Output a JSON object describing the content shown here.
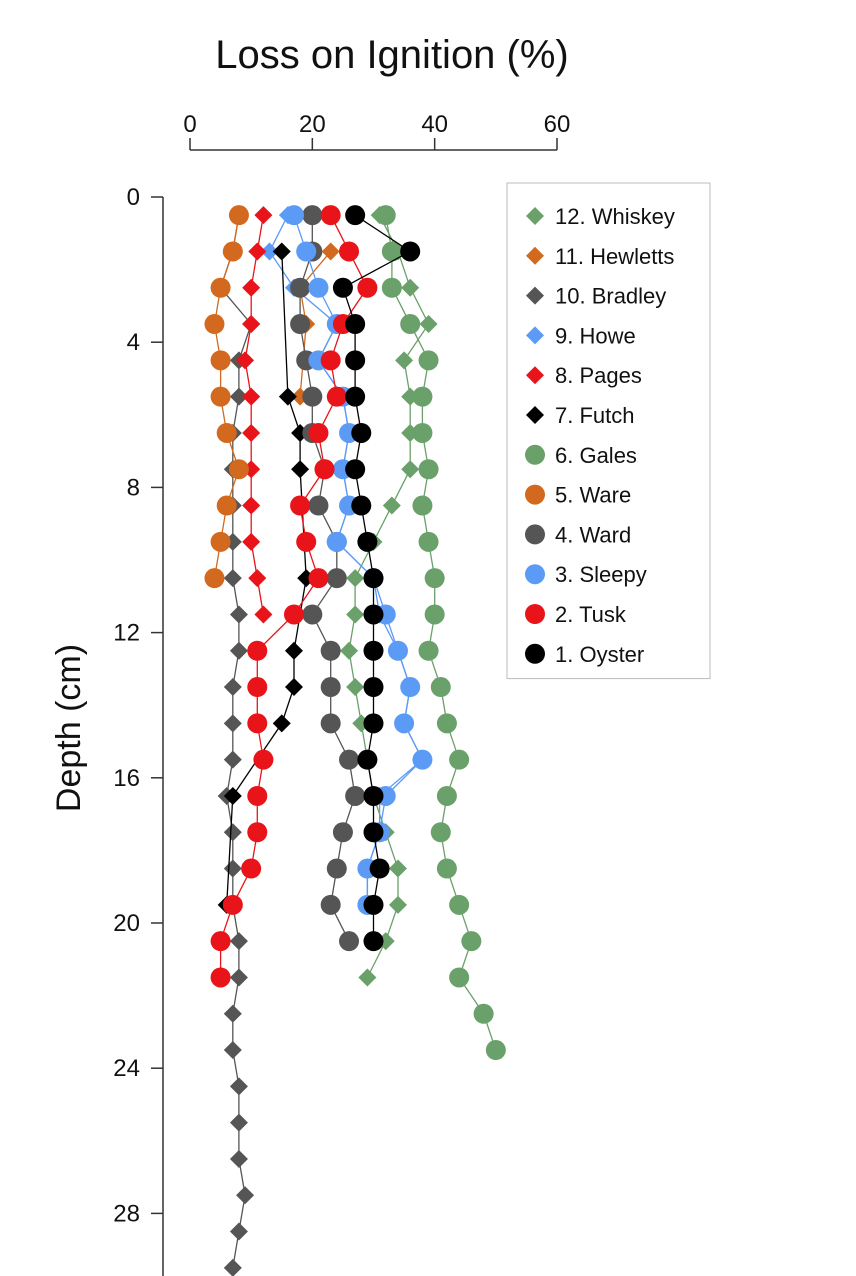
{
  "chart_data": {
    "type": "scatter",
    "title": "Loss on Ignition (%)",
    "xlabel": "Loss on Ignition (%)",
    "ylabel": "Depth (cm)",
    "xlim": [
      0,
      60
    ],
    "ylim": [
      0,
      30
    ],
    "x_axis_position": "top",
    "y_inverted": true,
    "xticks": [
      "0",
      "20",
      "40",
      "60"
    ],
    "yticks": [
      "0",
      "4",
      "8",
      "12",
      "16",
      "20",
      "24",
      "28"
    ],
    "grid": false,
    "legend_position": "top-right",
    "series": [
      {
        "name": "12. Whiskey",
        "marker": "diamond",
        "color": "#6aa06a",
        "points": [
          [
            31,
            0.5
          ],
          [
            34,
            1.5
          ],
          [
            36,
            2.5
          ],
          [
            39,
            3.5
          ],
          [
            35,
            4.5
          ],
          [
            36,
            5.5
          ],
          [
            36,
            6.5
          ],
          [
            36,
            7.5
          ],
          [
            33,
            8.5
          ],
          [
            30,
            9.5
          ],
          [
            27,
            10.5
          ],
          [
            27,
            11.5
          ],
          [
            26,
            12.5
          ],
          [
            27,
            13.5
          ],
          [
            28,
            14.5
          ],
          [
            29,
            15.5
          ],
          [
            30,
            16.5
          ],
          [
            32,
            17.5
          ],
          [
            34,
            18.5
          ],
          [
            34,
            19.5
          ],
          [
            32,
            20.5
          ],
          [
            29,
            21.5
          ]
        ]
      },
      {
        "name": "11. Hewletts",
        "marker": "diamond",
        "color": "#d2691e",
        "points": [
          [
            23,
            1.5
          ],
          [
            18,
            2.5
          ],
          [
            19,
            3.5
          ],
          [
            18,
            5.5
          ]
        ]
      },
      {
        "name": "10. Bradley",
        "marker": "diamond",
        "color": "#555555",
        "points": [
          [
            8,
            0.5
          ],
          [
            7,
            1.5
          ],
          [
            5,
            2.5
          ],
          [
            10,
            3.5
          ],
          [
            8,
            4.5
          ],
          [
            8,
            5.5
          ],
          [
            7,
            6.5
          ],
          [
            7,
            7.5
          ],
          [
            7,
            8.5
          ],
          [
            7,
            9.5
          ],
          [
            7,
            10.5
          ],
          [
            8,
            11.5
          ],
          [
            8,
            12.5
          ],
          [
            7,
            13.5
          ],
          [
            7,
            14.5
          ],
          [
            7,
            15.5
          ],
          [
            6,
            16.5
          ],
          [
            7,
            17.5
          ],
          [
            7,
            18.5
          ],
          [
            7,
            19.5
          ],
          [
            8,
            20.5
          ],
          [
            8,
            21.5
          ],
          [
            7,
            22.5
          ],
          [
            7,
            23.5
          ],
          [
            8,
            24.5
          ],
          [
            8,
            25.5
          ],
          [
            8,
            26.5
          ],
          [
            9,
            27.5
          ],
          [
            8,
            28.5
          ],
          [
            7,
            29.5
          ]
        ]
      },
      {
        "name": "9. Howe",
        "marker": "diamond",
        "color": "#5b9bf5",
        "points": [
          [
            16,
            0.5
          ],
          [
            13,
            1.5
          ],
          [
            17,
            2.5
          ],
          [
            24,
            3.5
          ],
          [
            21,
            4.5
          ],
          [
            25,
            5.5
          ],
          [
            26,
            6.5
          ],
          [
            25,
            7.5
          ],
          [
            26,
            8.5
          ],
          [
            24,
            9.5
          ],
          [
            30,
            10.5
          ],
          [
            31,
            11.5
          ],
          [
            34,
            12.5
          ],
          [
            36,
            13.5
          ],
          [
            35,
            14.5
          ],
          [
            38,
            15.5
          ],
          [
            31,
            16.5
          ],
          [
            31,
            17.5
          ],
          [
            29,
            18.5
          ],
          [
            29,
            19.5
          ]
        ]
      },
      {
        "name": "8. Pages",
        "marker": "diamond",
        "color": "#e8141a",
        "points": [
          [
            12,
            0.5
          ],
          [
            11,
            1.5
          ],
          [
            10,
            2.5
          ],
          [
            10,
            3.5
          ],
          [
            9,
            4.5
          ],
          [
            10,
            5.5
          ],
          [
            10,
            6.5
          ],
          [
            10,
            7.5
          ],
          [
            10,
            8.5
          ],
          [
            10,
            9.5
          ],
          [
            11,
            10.5
          ],
          [
            12,
            11.5
          ]
        ]
      },
      {
        "name": "7. Futch",
        "marker": "diamond",
        "color": "#000000",
        "points": [
          [
            15,
            1.5
          ],
          [
            16,
            5.5
          ],
          [
            18,
            6.5
          ],
          [
            18,
            7.5
          ],
          [
            19,
            10.5
          ],
          [
            17,
            12.5
          ],
          [
            17,
            13.5
          ],
          [
            15,
            14.5
          ],
          [
            7,
            16.5
          ],
          [
            6,
            19.5
          ]
        ]
      },
      {
        "name": "6. Gales",
        "marker": "circle",
        "color": "#6aa06a",
        "points": [
          [
            32,
            0.5
          ],
          [
            33,
            1.5
          ],
          [
            33,
            2.5
          ],
          [
            36,
            3.5
          ],
          [
            39,
            4.5
          ],
          [
            38,
            5.5
          ],
          [
            38,
            6.5
          ],
          [
            39,
            7.5
          ],
          [
            38,
            8.5
          ],
          [
            39,
            9.5
          ],
          [
            40,
            10.5
          ],
          [
            40,
            11.5
          ],
          [
            39,
            12.5
          ],
          [
            41,
            13.5
          ],
          [
            42,
            14.5
          ],
          [
            44,
            15.5
          ],
          [
            42,
            16.5
          ],
          [
            41,
            17.5
          ],
          [
            42,
            18.5
          ],
          [
            44,
            19.5
          ],
          [
            46,
            20.5
          ],
          [
            44,
            21.5
          ],
          [
            48,
            22.5
          ],
          [
            50,
            23.5
          ]
        ]
      },
      {
        "name": "5. Ware",
        "marker": "circle",
        "color": "#d2691e",
        "points": [
          [
            8,
            0.5
          ],
          [
            7,
            1.5
          ],
          [
            5,
            2.5
          ],
          [
            4,
            3.5
          ],
          [
            5,
            4.5
          ],
          [
            5,
            5.5
          ],
          [
            6,
            6.5
          ],
          [
            8,
            7.5
          ],
          [
            6,
            8.5
          ],
          [
            5,
            9.5
          ],
          [
            4,
            10.5
          ]
        ]
      },
      {
        "name": "4. Ward",
        "marker": "circle",
        "color": "#555555",
        "points": [
          [
            20,
            0.5
          ],
          [
            20,
            1.5
          ],
          [
            18,
            2.5
          ],
          [
            18,
            3.5
          ],
          [
            19,
            4.5
          ],
          [
            20,
            5.5
          ],
          [
            20,
            6.5
          ],
          [
            22,
            7.5
          ],
          [
            21,
            8.5
          ],
          [
            24,
            9.5
          ],
          [
            24,
            10.5
          ],
          [
            20,
            11.5
          ],
          [
            23,
            12.5
          ],
          [
            23,
            13.5
          ],
          [
            23,
            14.5
          ],
          [
            26,
            15.5
          ],
          [
            27,
            16.5
          ],
          [
            25,
            17.5
          ],
          [
            24,
            18.5
          ],
          [
            23,
            19.5
          ],
          [
            26,
            20.5
          ]
        ]
      },
      {
        "name": "3. Sleepy",
        "marker": "circle",
        "color": "#5b9bf5",
        "points": [
          [
            17,
            0.5
          ],
          [
            19,
            1.5
          ],
          [
            21,
            2.5
          ],
          [
            24,
            3.5
          ],
          [
            21,
            4.5
          ],
          [
            25,
            5.5
          ],
          [
            26,
            6.5
          ],
          [
            25,
            7.5
          ],
          [
            26,
            8.5
          ],
          [
            24,
            9.5
          ],
          [
            30,
            10.5
          ],
          [
            32,
            11.5
          ],
          [
            34,
            12.5
          ],
          [
            36,
            13.5
          ],
          [
            35,
            14.5
          ],
          [
            38,
            15.5
          ],
          [
            32,
            16.5
          ],
          [
            31,
            17.5
          ],
          [
            29,
            18.5
          ],
          [
            29,
            19.5
          ]
        ]
      },
      {
        "name": "2. Tusk",
        "marker": "circle",
        "color": "#e8141a",
        "points": [
          [
            23,
            0.5
          ],
          [
            26,
            1.5
          ],
          [
            29,
            2.5
          ],
          [
            25,
            3.5
          ],
          [
            23,
            4.5
          ],
          [
            24,
            5.5
          ],
          [
            21,
            6.5
          ],
          [
            22,
            7.5
          ],
          [
            18,
            8.5
          ],
          [
            19,
            9.5
          ],
          [
            21,
            10.5
          ],
          [
            17,
            11.5
          ],
          [
            11,
            12.5
          ],
          [
            11,
            13.5
          ],
          [
            11,
            14.5
          ],
          [
            12,
            15.5
          ],
          [
            11,
            16.5
          ],
          [
            11,
            17.5
          ],
          [
            10,
            18.5
          ],
          [
            7,
            19.5
          ],
          [
            5,
            20.5
          ],
          [
            5,
            21.5
          ]
        ]
      },
      {
        "name": "1.  Oyster",
        "marker": "circle",
        "color": "#000000",
        "points": [
          [
            27,
            0.5
          ],
          [
            36,
            1.5
          ],
          [
            25,
            2.5
          ],
          [
            27,
            3.5
          ],
          [
            27,
            4.5
          ],
          [
            27,
            5.5
          ],
          [
            28,
            6.5
          ],
          [
            27,
            7.5
          ],
          [
            28,
            8.5
          ],
          [
            29,
            9.5
          ],
          [
            30,
            10.5
          ],
          [
            30,
            11.5
          ],
          [
            30,
            12.5
          ],
          [
            30,
            13.5
          ],
          [
            30,
            14.5
          ],
          [
            29,
            15.5
          ],
          [
            30,
            16.5
          ],
          [
            30,
            17.5
          ],
          [
            31,
            18.5
          ],
          [
            30,
            19.5
          ],
          [
            30,
            20.5
          ]
        ]
      }
    ]
  }
}
